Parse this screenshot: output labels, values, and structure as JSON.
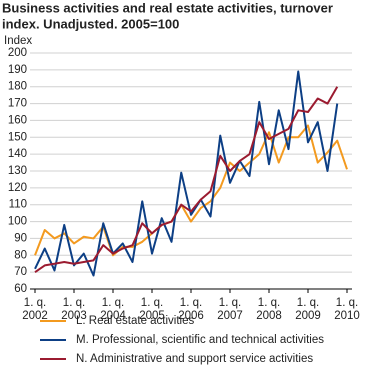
{
  "chart_data": {
    "type": "line",
    "title": "Business activities and real estate activities, turnover",
    "subtitle": "index. Unadjusted. 2005=100",
    "y_label": "Index",
    "categories": [
      "1. q. 2002",
      null,
      null,
      null,
      "1. q. 2003",
      null,
      null,
      null,
      "1. q. 2004",
      null,
      null,
      null,
      "1. q. 2005",
      null,
      null,
      null,
      "1. q. 2006",
      null,
      null,
      null,
      "1. q. 2007",
      null,
      null,
      null,
      "1. q. 2008",
      null,
      null,
      null,
      "1. q. 2009",
      null,
      null,
      null,
      "1. q. 2010"
    ],
    "series": [
      {
        "name": "L. Real estate activities",
        "color": "#f39a1f",
        "values": [
          80,
          95,
          90,
          93,
          87,
          91,
          90,
          97,
          80,
          85,
          85,
          88,
          93,
          98,
          100,
          110,
          100,
          108,
          112,
          120,
          135,
          130,
          135,
          140,
          153,
          135,
          150,
          150,
          157,
          135,
          141,
          148,
          131
        ]
      },
      {
        "name": "M. Professional, scientific and technical activities",
        "color": "#0d3f85",
        "values": [
          72,
          84,
          71,
          98,
          74,
          81,
          68,
          99,
          81,
          87,
          76,
          112,
          81,
          102,
          88,
          129,
          104,
          113,
          103,
          151,
          123,
          136,
          127,
          171,
          134,
          166,
          143,
          189,
          147,
          159,
          130,
          170,
          null
        ]
      },
      {
        "name": "N. Administrative and support service activities",
        "color": "#9b1b30",
        "values": [
          70,
          74,
          75,
          76,
          75,
          76,
          77,
          86,
          81,
          84,
          86,
          99,
          93,
          98,
          100,
          110,
          106,
          113,
          118,
          139,
          130,
          136,
          140,
          159,
          149,
          152,
          155,
          166,
          165,
          173,
          170,
          180,
          null
        ]
      }
    ],
    "ylim": [
      60,
      200
    ],
    "yticks": [
      60,
      70,
      80,
      90,
      100,
      110,
      120,
      130,
      140,
      150,
      160,
      170,
      180,
      190,
      200
    ],
    "grid": true
  }
}
